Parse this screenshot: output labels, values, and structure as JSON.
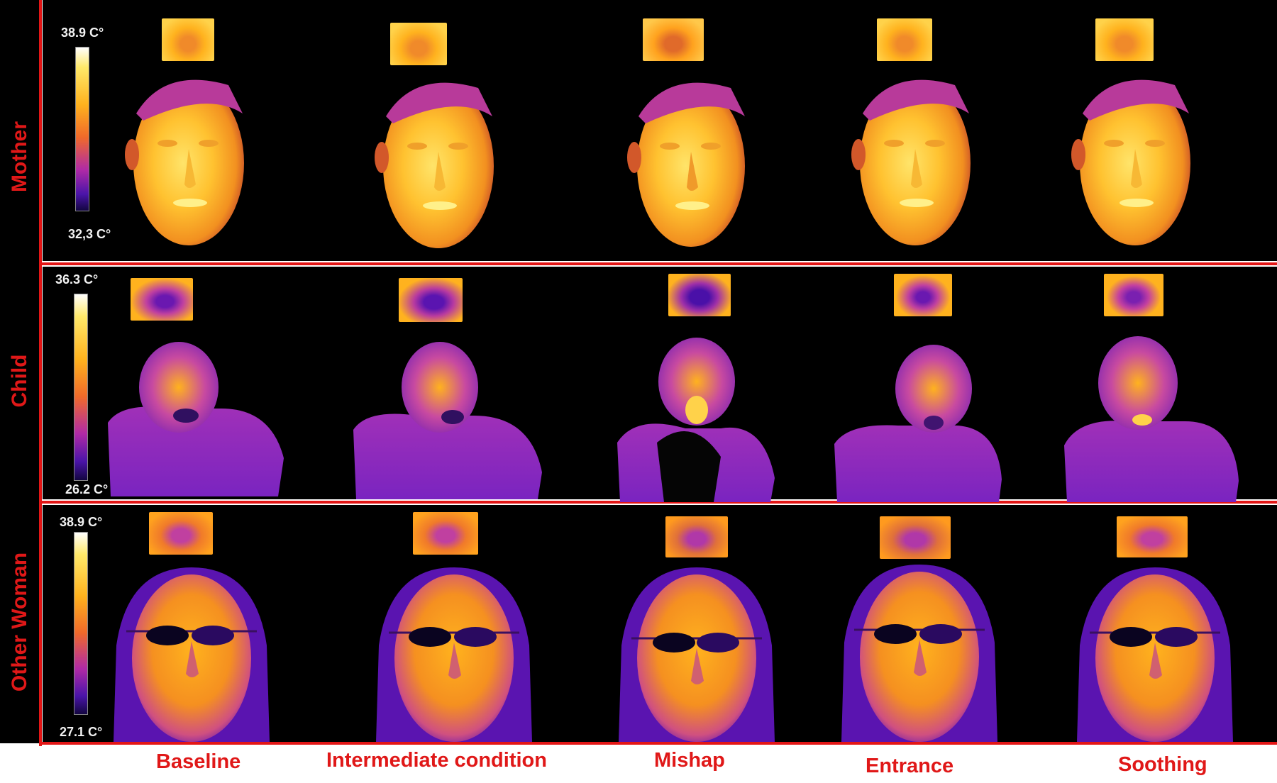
{
  "rows": [
    {
      "label": "Mother",
      "scale_max": "38.9 C°",
      "scale_min": "32,3 C°"
    },
    {
      "label": "Child",
      "scale_max": "36.3 C°",
      "scale_min": "26.2 C°"
    },
    {
      "label": "Other Woman",
      "scale_max": "38.9 C°",
      "scale_min": "27.1 C°"
    }
  ],
  "columns": [
    "Baseline",
    "Intermediate condition",
    "Mishap",
    "Entrance",
    "Soothing"
  ],
  "colors": {
    "background": "#000000",
    "border": "#e31616",
    "label_text": "#e01818",
    "palette": [
      "#ffffff",
      "#ffe96a",
      "#ffb21e",
      "#f06a2a",
      "#b02aa6",
      "#4a14a8",
      "#120640"
    ]
  }
}
